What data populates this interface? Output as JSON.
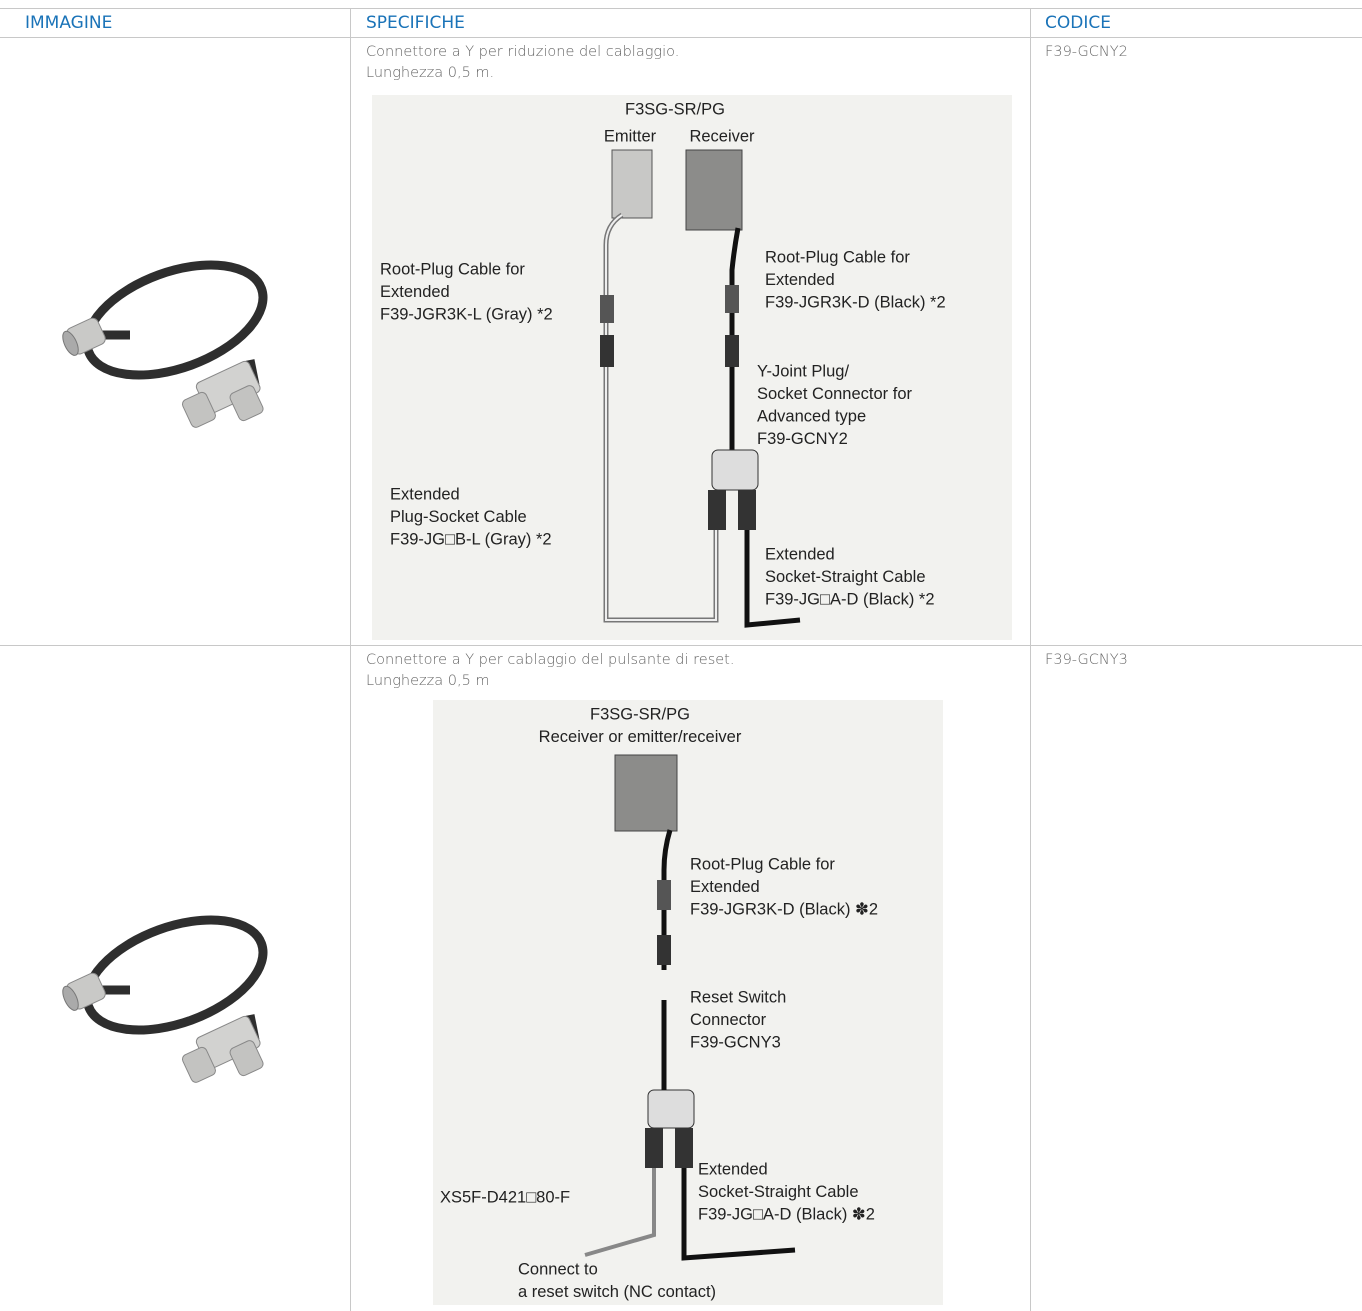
{
  "table": {
    "headers": [
      "IMMAGINE",
      "SPECIFICHE",
      "CODICE"
    ],
    "rows": [
      {
        "description": [
          "Connettore a Y per riduzione del cablaggio.",
          "Lunghezza 0,5 m."
        ],
        "code": "F39-GCNY2",
        "diagram": {
          "labels": [
            [
              "F3SG-SR/PG"
            ],
            [
              "Emitter"
            ],
            [
              "Receiver"
            ],
            [
              "Root-Plug Cable for",
              "Extended",
              "F39-JGR3K-L (Gray) *2"
            ],
            [
              "Root-Plug Cable for",
              "Extended",
              "F39-JGR3K-D (Black) *2"
            ],
            [
              "Y-Joint Plug/",
              "Socket Connector for",
              "Advanced type",
              "F39-GCNY2"
            ],
            [
              "Extended",
              "Plug-Socket Cable",
              "F39-JG□B-L (Gray) *2"
            ],
            [
              "Extended",
              "Socket-Straight Cable",
              "F39-JG□A-D (Black) *2"
            ]
          ]
        }
      },
      {
        "description": [
          "Connettore a Y per cablaggio del pulsante di reset.",
          "Lunghezza 0,5 m"
        ],
        "code": "F39-GCNY3",
        "diagram": {
          "labels": [
            [
              "F3SG-SR/PG",
              "Receiver or emitter/receiver"
            ],
            [
              "Root-Plug Cable for",
              "Extended",
              "F39-JGR3K-D (Black) ✽2"
            ],
            [
              "Reset Switch",
              "Connector",
              "F39-GCNY3"
            ],
            [
              "XS5F-D421□80-F"
            ],
            [
              "Extended",
              "Socket-Straight Cable",
              "F39-JG□A-D (Black) ✽2"
            ],
            [
              "Connect to",
              "a reset switch (NC contact)"
            ]
          ]
        }
      }
    ]
  }
}
